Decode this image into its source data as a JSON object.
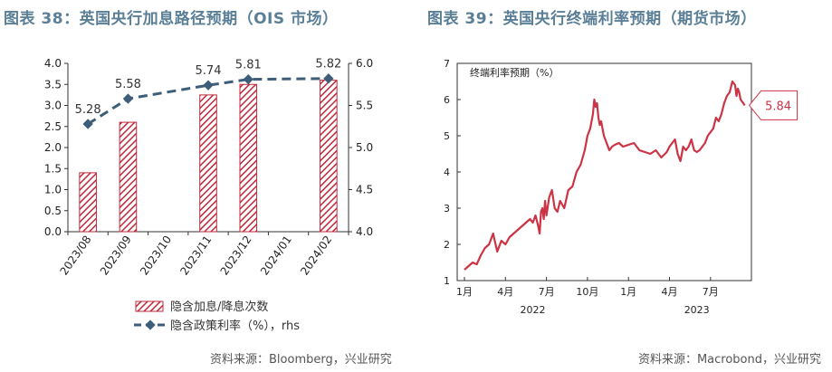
{
  "left": {
    "title": "图表 38：英国央行加息路径预期（OIS 市场）",
    "source": "资料来源：Bloomberg，兴业研究"
  },
  "right": {
    "title": "图表 39：英国央行终端利率预期（期货市场）",
    "source": "资料来源：Macrobond，兴业研究"
  },
  "chart_data": [
    {
      "type": "bar",
      "categories": [
        "2023/08",
        "2023/09",
        "2023/10",
        "2023/11",
        "2023/12",
        "2024/01",
        "2024/02"
      ],
      "series": [
        {
          "name": "隐含加息/降息次数",
          "type": "bar",
          "axis": "left",
          "values": [
            1.4,
            2.6,
            null,
            3.25,
            3.5,
            null,
            3.6
          ]
        },
        {
          "name": "隐含政策利率（%），rhs",
          "type": "line",
          "axis": "right",
          "values": [
            5.28,
            5.58,
            null,
            5.74,
            5.81,
            null,
            5.82
          ],
          "labels": [
            "5.28",
            "5.58",
            "",
            "5.74",
            "5.81",
            "",
            "5.82"
          ]
        }
      ],
      "ylim": [
        0.0,
        4.0
      ],
      "yticks": [
        "0.0",
        "0.5",
        "1.0",
        "1.5",
        "2.0",
        "2.5",
        "3.0",
        "3.5",
        "4.0"
      ],
      "y2lim": [
        4.0,
        6.0
      ],
      "y2ticks": [
        "4.0",
        "4.5",
        "5.0",
        "5.5",
        "6.0"
      ],
      "colors": {
        "bar": "#c0283a",
        "line": "#3d5d78"
      },
      "legend_position": "bottom"
    },
    {
      "type": "line",
      "ylabel": "终端利率预期（%）",
      "ylim": [
        1,
        7
      ],
      "yticks": [
        "1",
        "2",
        "3",
        "4",
        "5",
        "6",
        "7"
      ],
      "xticks": [
        "1月",
        "4月",
        "7月",
        "10月",
        "1月",
        "4月",
        "7月"
      ],
      "year_labels": [
        "2022",
        "2023"
      ],
      "last_value_label": "5.84",
      "color": "#cc3344",
      "x": [
        0.0,
        0.3,
        0.6,
        0.9,
        1.2,
        1.5,
        1.8,
        2.1,
        2.4,
        2.7,
        3.0,
        3.3,
        3.6,
        3.9,
        4.2,
        4.5,
        4.8,
        5.0,
        5.2,
        5.4,
        5.5,
        5.6,
        5.7,
        5.8,
        5.9,
        6.0,
        6.2,
        6.4,
        6.6,
        6.8,
        7.0,
        7.3,
        7.6,
        7.9,
        8.2,
        8.5,
        8.8,
        9.0,
        9.2,
        9.4,
        9.5,
        9.6,
        9.7,
        9.8,
        9.9,
        10.0,
        10.2,
        10.4,
        10.6,
        10.8,
        11.0,
        11.3,
        11.6,
        12.0,
        12.4,
        12.8,
        13.2,
        13.6,
        14.0,
        14.4,
        14.8,
        15.0,
        15.2,
        15.4,
        15.6,
        15.8,
        16.0,
        16.2,
        16.4,
        16.6,
        16.8,
        17.0,
        17.2,
        17.4,
        17.6,
        17.8,
        18.0,
        18.2,
        18.4,
        18.6,
        18.8,
        19.0,
        19.2,
        19.4,
        19.6,
        19.8,
        19.9,
        20.0,
        20.1,
        20.2,
        20.3,
        20.4,
        20.5
      ],
      "y": [
        1.3,
        1.4,
        1.5,
        1.45,
        1.7,
        1.9,
        2.0,
        2.3,
        1.8,
        2.1,
        2.0,
        2.2,
        2.3,
        2.4,
        2.5,
        2.6,
        2.7,
        2.6,
        2.8,
        2.5,
        2.3,
        2.9,
        3.0,
        2.7,
        3.2,
        2.8,
        3.3,
        3.5,
        3.0,
        2.9,
        3.2,
        3.0,
        3.5,
        3.6,
        4.0,
        4.2,
        4.6,
        5.0,
        5.2,
        5.6,
        6.0,
        5.8,
        5.9,
        5.5,
        5.3,
        5.4,
        5.0,
        4.8,
        4.6,
        4.7,
        4.75,
        4.8,
        4.7,
        4.75,
        4.8,
        4.6,
        4.55,
        4.5,
        4.6,
        4.4,
        4.55,
        4.7,
        4.8,
        4.9,
        4.5,
        4.3,
        4.7,
        4.6,
        4.7,
        4.9,
        4.6,
        4.55,
        4.6,
        4.7,
        4.8,
        5.0,
        5.1,
        5.2,
        5.5,
        5.4,
        5.6,
        5.9,
        6.1,
        6.2,
        6.5,
        6.4,
        6.1,
        6.3,
        6.2,
        6.0,
        5.95,
        5.9,
        5.84
      ]
    }
  ]
}
